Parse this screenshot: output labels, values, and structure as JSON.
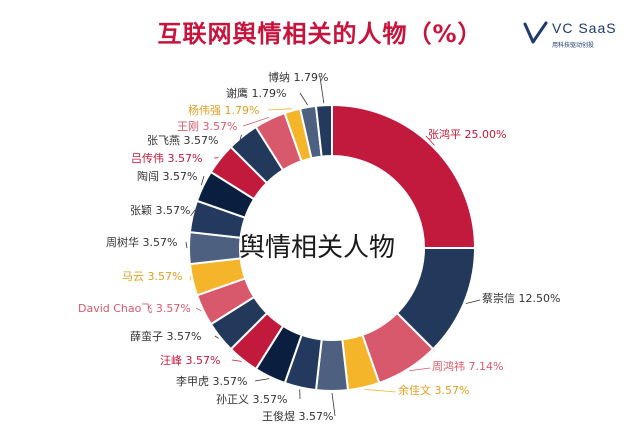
{
  "title": "互联网舆情相关的人物（%）",
  "logo": {
    "brand": "VC SaaS",
    "tagline": "用科技驱动创投"
  },
  "chart_data": {
    "type": "pie",
    "donut": true,
    "center_label": "舆情相关人物",
    "slices": [
      {
        "name": "张鸿平",
        "value": 25.0,
        "label": "张鸿平 25.00%",
        "color": "#c21a3c"
      },
      {
        "name": "蔡崇信",
        "value": 12.5,
        "label": "蔡崇信 12.50%",
        "color": "#23395b"
      },
      {
        "name": "周鸿祎",
        "value": 7.14,
        "label": "周鸿祎 7.14%",
        "color": "#d9596c"
      },
      {
        "name": "余佳文",
        "value": 3.57,
        "label": "余佳文 3.57%",
        "color": "#f5b52a"
      },
      {
        "name": "王俊煜",
        "value": 3.57,
        "label": "王俊煜 3.57%",
        "color": "#4d6080"
      },
      {
        "name": "孙正义",
        "value": 3.57,
        "label": "孙正义 3.57%",
        "color": "#24395e"
      },
      {
        "name": "李甲虎",
        "value": 3.57,
        "label": "李甲虎 3.57%",
        "color": "#0a1f40"
      },
      {
        "name": "汪峰",
        "value": 3.57,
        "label": "汪峰 3.57%",
        "color": "#c21a3c"
      },
      {
        "name": "薛蛮子",
        "value": 3.57,
        "label": "薛蛮子 3.57%",
        "color": "#23395b"
      },
      {
        "name": "David Chao飞",
        "value": 3.57,
        "label": "David Chao飞 3.57%",
        "color": "#d9596c"
      },
      {
        "name": "马云",
        "value": 3.57,
        "label": "马云 3.57%",
        "color": "#f5b52a"
      },
      {
        "name": "周树华",
        "value": 3.57,
        "label": "周树华 3.57%",
        "color": "#4d6080"
      },
      {
        "name": "张颖",
        "value": 3.57,
        "label": "张颖 3.57%",
        "color": "#24395e"
      },
      {
        "name": "陶闯",
        "value": 3.57,
        "label": "陶闯 3.57%",
        "color": "#0a1f40"
      },
      {
        "name": "吕传伟",
        "value": 3.57,
        "label": "吕传伟 3.57%",
        "color": "#c21a3c"
      },
      {
        "name": "张飞燕",
        "value": 3.57,
        "label": "张飞燕 3.57%",
        "color": "#23395b"
      },
      {
        "name": "王刚",
        "value": 3.57,
        "label": "王刚 3.57%",
        "color": "#d9596c"
      },
      {
        "name": "杨伟强",
        "value": 1.79,
        "label": "杨伟强 1.79%",
        "color": "#f5b52a"
      },
      {
        "name": "谢鹰",
        "value": 1.79,
        "label": "谢鹰 1.79%",
        "color": "#4d6080"
      },
      {
        "name": "博纳",
        "value": 1.79,
        "label": "博纳 1.79%",
        "color": "#24395e"
      }
    ]
  }
}
